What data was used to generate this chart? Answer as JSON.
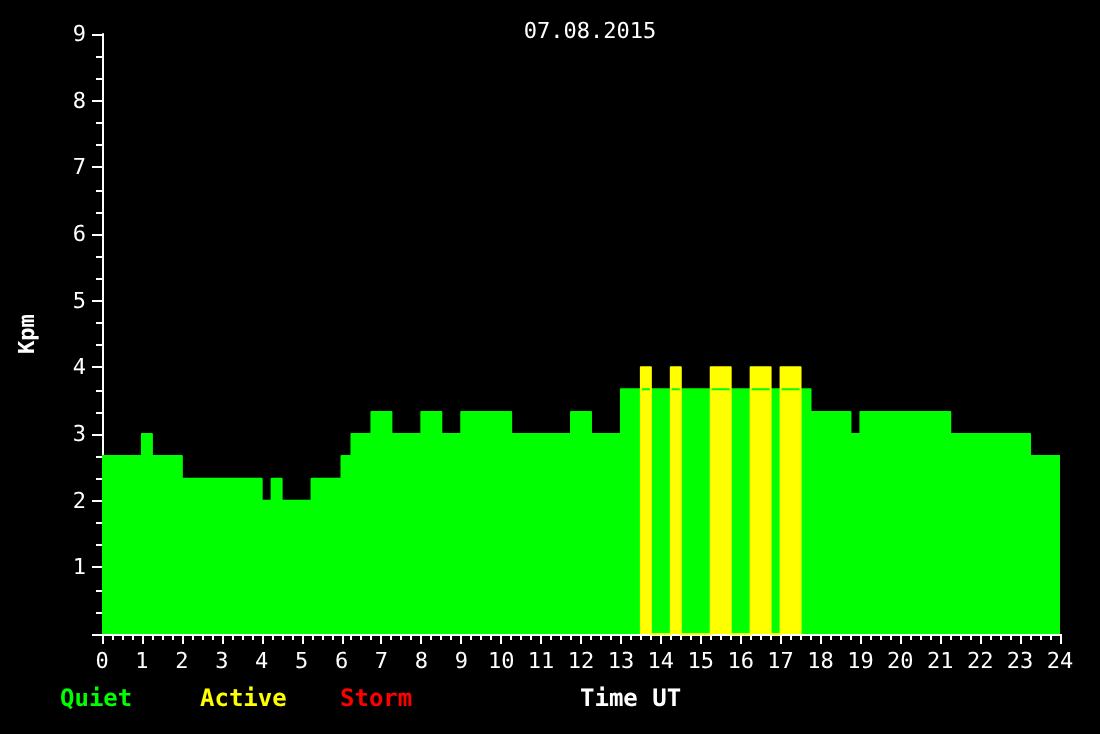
{
  "chart_data": {
    "type": "area",
    "title": "07.08.2015",
    "xlabel": "Time UT",
    "ylabel": "Kpm",
    "series": [
      {
        "name": "Quiet",
        "color": "#00ff00",
        "x": [
          0,
          1,
          1,
          1.25,
          1.25,
          2,
          2,
          4,
          4,
          4.25,
          4.25,
          4.5,
          4.5,
          5.25,
          5.25,
          6,
          6,
          6.25,
          6.25,
          6.75,
          6.75,
          7.25,
          7.25,
          8,
          8,
          8.5,
          8.5,
          9,
          9,
          10.25,
          10.25,
          11.75,
          11.75,
          12.25,
          12.25,
          13,
          13,
          17.75,
          17.75,
          18.75,
          18.75,
          19,
          19,
          21.25,
          21.25,
          23.25,
          23.25,
          24
        ],
        "values": [
          2.67,
          2.67,
          3,
          3,
          2.67,
          2.67,
          2.33,
          2.33,
          2,
          2,
          2.33,
          2.33,
          2,
          2,
          2.33,
          2.33,
          2.67,
          2.67,
          3,
          3,
          3.33,
          3.33,
          3,
          3,
          3.33,
          3.33,
          3,
          3,
          3.33,
          3.33,
          3,
          3,
          3.33,
          3.33,
          3,
          3,
          3.67,
          3.67,
          3.33,
          3.33,
          3,
          3,
          3.33,
          3.33,
          3,
          3,
          2.67,
          2.67
        ]
      },
      {
        "name": "Active",
        "color": "#ffff00",
        "x": [
          13.5,
          13.5,
          13.75,
          13.75,
          14.25,
          14.25,
          14.5,
          14.5,
          15.25,
          15.25,
          15.75,
          15.75,
          16.25,
          16.25,
          16.75,
          16.75,
          17,
          17,
          17.5,
          17.5
        ],
        "values": [
          0,
          4,
          4,
          0,
          0,
          4,
          4,
          0,
          0,
          4,
          4,
          0,
          0,
          4,
          4,
          0,
          0,
          4,
          4,
          0
        ]
      },
      {
        "name": "Storm",
        "color": "#ff0000"
      }
    ],
    "xlim": [
      0,
      24
    ],
    "xticks": [
      0,
      1,
      2,
      3,
      4,
      5,
      6,
      7,
      8,
      9,
      10,
      11,
      12,
      13,
      14,
      15,
      16,
      17,
      18,
      19,
      20,
      21,
      22,
      23,
      24
    ],
    "ylim": [
      0,
      9
    ],
    "yticks": [
      1,
      2,
      3,
      4,
      5,
      6,
      7,
      8,
      9
    ],
    "grid": false
  }
}
